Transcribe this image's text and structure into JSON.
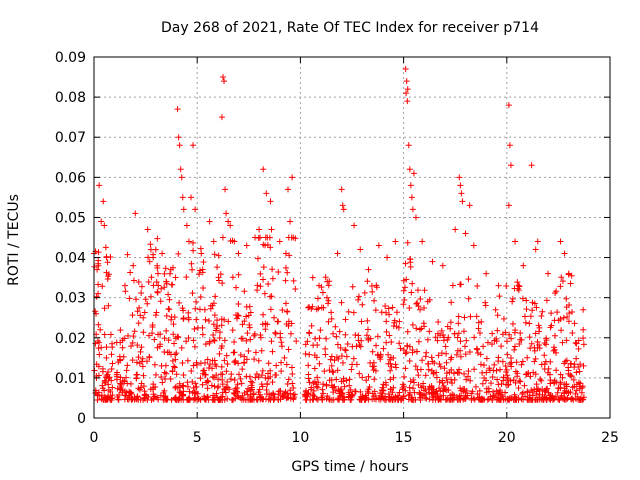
{
  "chart_data": {
    "type": "scatter",
    "title": "Day 268 of 2021, Rate Of TEC Index for receiver p714",
    "xlabel": "GPS time / hours",
    "ylabel": "ROTI / TECUs",
    "xlim": [
      0,
      25
    ],
    "ylim": [
      0,
      0.09
    ],
    "x_ticks": [
      "0",
      "5",
      "10",
      "15",
      "20",
      "25"
    ],
    "y_ticks": [
      "0",
      "0.01",
      "0.02",
      "0.03",
      "0.04",
      "0.05",
      "0.06",
      "0.07",
      "0.08",
      "0.09"
    ],
    "grid": true,
    "marker": "+",
    "color": "#ff0000",
    "series": [
      {
        "name": "ROTI",
        "data_gap_hours": [
          [
            0.9,
            1.1
          ],
          [
            9.8,
            10.2
          ]
        ],
        "points": [
          [
            0.0,
            0.041
          ],
          [
            0.1,
            0.026
          ],
          [
            0.15,
            0.037
          ],
          [
            0.2,
            0.031
          ],
          [
            0.25,
            0.058
          ],
          [
            0.35,
            0.049
          ],
          [
            0.45,
            0.054
          ],
          [
            0.5,
            0.048
          ],
          [
            0.3,
            0.022
          ],
          [
            0.6,
            0.015
          ],
          [
            1.5,
            0.033
          ],
          [
            1.9,
            0.038
          ],
          [
            2.0,
            0.051
          ],
          [
            2.6,
            0.047
          ],
          [
            2.7,
            0.039
          ],
          [
            3.1,
            0.036
          ],
          [
            3.3,
            0.041
          ],
          [
            3.5,
            0.034
          ],
          [
            4.05,
            0.077
          ],
          [
            4.1,
            0.07
          ],
          [
            4.15,
            0.068
          ],
          [
            4.2,
            0.062
          ],
          [
            4.25,
            0.06
          ],
          [
            4.3,
            0.055
          ],
          [
            4.35,
            0.052
          ],
          [
            4.5,
            0.048
          ],
          [
            4.6,
            0.044
          ],
          [
            4.8,
            0.068
          ],
          [
            4.7,
            0.055
          ],
          [
            4.9,
            0.052
          ],
          [
            5.2,
            0.041
          ],
          [
            5.6,
            0.049
          ],
          [
            5.8,
            0.044
          ],
          [
            6.25,
            0.085
          ],
          [
            6.3,
            0.084
          ],
          [
            6.2,
            0.075
          ],
          [
            6.35,
            0.057
          ],
          [
            6.4,
            0.051
          ],
          [
            6.5,
            0.049
          ],
          [
            6.6,
            0.048
          ],
          [
            6.8,
            0.044
          ],
          [
            7.0,
            0.041
          ],
          [
            7.4,
            0.043
          ],
          [
            7.8,
            0.045
          ],
          [
            8.0,
            0.047
          ],
          [
            8.2,
            0.062
          ],
          [
            8.35,
            0.056
          ],
          [
            8.55,
            0.054
          ],
          [
            8.6,
            0.047
          ],
          [
            9.0,
            0.044
          ],
          [
            9.4,
            0.057
          ],
          [
            9.6,
            0.06
          ],
          [
            9.5,
            0.049
          ],
          [
            9.3,
            0.041
          ],
          [
            10.6,
            0.035
          ],
          [
            10.9,
            0.033
          ],
          [
            11.3,
            0.034
          ],
          [
            11.8,
            0.041
          ],
          [
            12.0,
            0.057
          ],
          [
            12.05,
            0.053
          ],
          [
            12.1,
            0.052
          ],
          [
            12.6,
            0.048
          ],
          [
            12.9,
            0.042
          ],
          [
            13.3,
            0.037
          ],
          [
            13.8,
            0.043
          ],
          [
            14.2,
            0.04
          ],
          [
            14.6,
            0.044
          ],
          [
            15.1,
            0.087
          ],
          [
            15.15,
            0.084
          ],
          [
            15.2,
            0.082
          ],
          [
            15.12,
            0.081
          ],
          [
            15.18,
            0.079
          ],
          [
            15.25,
            0.068
          ],
          [
            15.3,
            0.062
          ],
          [
            15.35,
            0.058
          ],
          [
            15.4,
            0.055
          ],
          [
            15.45,
            0.052
          ],
          [
            15.5,
            0.061
          ],
          [
            15.6,
            0.05
          ],
          [
            15.9,
            0.044
          ],
          [
            16.4,
            0.039
          ],
          [
            16.9,
            0.038
          ],
          [
            17.5,
            0.047
          ],
          [
            17.7,
            0.06
          ],
          [
            17.75,
            0.058
          ],
          [
            17.8,
            0.056
          ],
          [
            17.85,
            0.054
          ],
          [
            18.0,
            0.046
          ],
          [
            18.2,
            0.053
          ],
          [
            18.4,
            0.043
          ],
          [
            19.0,
            0.036
          ],
          [
            19.6,
            0.033
          ],
          [
            20.1,
            0.078
          ],
          [
            20.15,
            0.068
          ],
          [
            20.2,
            0.063
          ],
          [
            20.1,
            0.053
          ],
          [
            20.4,
            0.044
          ],
          [
            20.8,
            0.038
          ],
          [
            21.2,
            0.063
          ],
          [
            21.5,
            0.044
          ],
          [
            21.4,
            0.042
          ],
          [
            22.0,
            0.036
          ],
          [
            22.6,
            0.044
          ],
          [
            22.8,
            0.041
          ],
          [
            23.0,
            0.036
          ],
          [
            23.7,
            0.027
          ],
          [
            23.7,
            0.022
          ]
        ]
      }
    ]
  }
}
